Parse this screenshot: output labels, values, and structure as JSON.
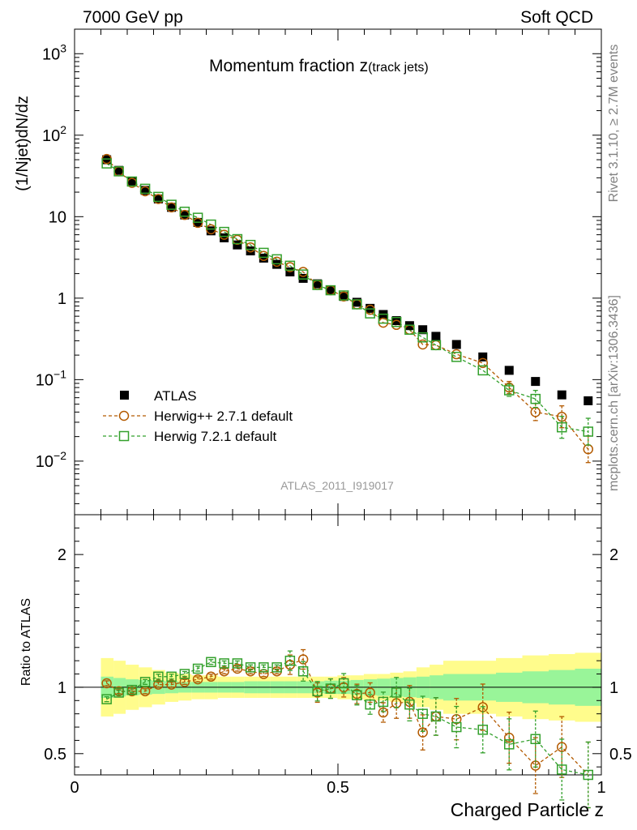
{
  "header": {
    "left": "7000 GeV pp",
    "right": "Soft QCD"
  },
  "side": {
    "rivet": "Rivet 3.1.10, ≥ 2.7M events",
    "mcplots": "mcplots.cern.ch [arXiv:1306.3436]"
  },
  "analysis_id": "ATLAS_2011_I919017",
  "title": {
    "main": "Momentum fraction z",
    "sub": "(track jets)"
  },
  "legend": {
    "atlas": "ATLAS",
    "h1": "Herwig++ 2.7.1 default",
    "h2": "Herwig 7.2.1 default"
  },
  "colors": {
    "atlas": "#000000",
    "herwigpp": "#b35a00",
    "herwig7": "#33a02c",
    "band_inner": "#99f599",
    "band_outer": "#fffc8c"
  },
  "chart_data": {
    "type": "scatter",
    "x": [
      0.061,
      0.084,
      0.109,
      0.134,
      0.159,
      0.184,
      0.209,
      0.234,
      0.259,
      0.284,
      0.309,
      0.334,
      0.359,
      0.384,
      0.409,
      0.434,
      0.461,
      0.486,
      0.511,
      0.536,
      0.561,
      0.586,
      0.611,
      0.636,
      0.661,
      0.686,
      0.725,
      0.775,
      0.825,
      0.875,
      0.925,
      0.975
    ],
    "series": [
      {
        "name": "ATLAS",
        "values": [
          50,
          37,
          27,
          21,
          16.5,
          13,
          10.5,
          8.5,
          6.7,
          5.5,
          4.5,
          3.8,
          3.1,
          2.6,
          2.1,
          1.75,
          1.5,
          1.25,
          1.05,
          0.89,
          0.75,
          0.63,
          0.53,
          0.46,
          0.41,
          0.34,
          0.27,
          0.19,
          0.13,
          0.095,
          0.065,
          0.055
        ]
      },
      {
        "name": "Herwig++ 2.7.1 default",
        "values": [
          51,
          36,
          26,
          20.5,
          16.5,
          13,
          10.5,
          8.4,
          7,
          6,
          5.2,
          4.2,
          3.3,
          2.8,
          2.4,
          2.1,
          1.45,
          1.25,
          1.05,
          0.84,
          0.72,
          0.5,
          0.47,
          0.41,
          0.27,
          0.265,
          0.205,
          0.16,
          0.08,
          0.04,
          0.035,
          0.014
        ]
      },
      {
        "name": "Herwig 7.2.1 default",
        "values": [
          45,
          36,
          27,
          22,
          17.5,
          14,
          11.5,
          9.7,
          8,
          6.5,
          5.3,
          4.5,
          3.6,
          3,
          2.5,
          1.95,
          1.45,
          1.25,
          1.08,
          0.84,
          0.65,
          0.56,
          0.51,
          0.41,
          0.33,
          0.265,
          0.19,
          0.13,
          0.074,
          0.058,
          0.026,
          0.023
        ]
      }
    ],
    "ratio": {
      "ylabel": "Ratio to ATLAS",
      "herwigpp": [
        1.03,
        0.97,
        0.97,
        0.97,
        1.02,
        1.02,
        1.04,
        1.06,
        1.08,
        1.12,
        1.14,
        1.12,
        1.1,
        1.12,
        1.17,
        1.21,
        0.96,
        0.99,
        1.0,
        0.95,
        0.96,
        0.81,
        0.88,
        0.89,
        0.66,
        0.78,
        0.76,
        0.85,
        0.62,
        0.41,
        0.55,
        0.32
      ],
      "herwig7": [
        0.91,
        0.96,
        0.98,
        1.04,
        1.08,
        1.08,
        1.1,
        1.14,
        1.19,
        1.18,
        1.18,
        1.15,
        1.15,
        1.15,
        1.2,
        1.12,
        0.97,
        0.99,
        1.03,
        0.94,
        0.87,
        0.89,
        0.96,
        0.87,
        0.8,
        0.78,
        0.7,
        0.68,
        0.57,
        0.61,
        0.38,
        0.34
      ],
      "band_x": [
        0.05,
        0.074,
        0.097,
        0.122,
        0.147,
        0.172,
        0.197,
        0.222,
        0.247,
        0.272,
        0.297,
        0.322,
        0.347,
        0.372,
        0.397,
        0.422,
        0.447,
        0.474,
        0.499,
        0.524,
        0.549,
        0.574,
        0.599,
        0.624,
        0.649,
        0.674,
        0.7,
        0.75,
        0.8,
        0.85,
        0.9,
        0.95,
        1.0
      ],
      "band_inner": [
        0.08,
        0.07,
        0.06,
        0.055,
        0.05,
        0.045,
        0.04,
        0.04,
        0.04,
        0.04,
        0.04,
        0.045,
        0.045,
        0.045,
        0.045,
        0.045,
        0.045,
        0.05,
        0.05,
        0.055,
        0.06,
        0.065,
        0.07,
        0.075,
        0.08,
        0.09,
        0.1,
        0.1,
        0.11,
        0.12,
        0.13,
        0.14
      ],
      "band_outer": [
        0.22,
        0.2,
        0.17,
        0.15,
        0.13,
        0.11,
        0.1,
        0.09,
        0.09,
        0.08,
        0.08,
        0.08,
        0.08,
        0.08,
        0.08,
        0.08,
        0.08,
        0.08,
        0.09,
        0.09,
        0.1,
        0.1,
        0.11,
        0.12,
        0.15,
        0.17,
        0.2,
        0.2,
        0.22,
        0.24,
        0.25,
        0.26
      ],
      "ylim": [
        0.34,
        2.3
      ],
      "yticks": [
        "0.5",
        "1",
        "2"
      ]
    },
    "xlabel": "Charged Particle z",
    "ylabel": "(1/Njet)dN/dz",
    "xlim": [
      0,
      1.0
    ],
    "ylim": [
      0.0022,
      2000
    ],
    "log_y": true,
    "xticks": [
      "0",
      "0.5",
      "1"
    ],
    "yticks": [
      "10−2",
      "10−1",
      "1",
      "10",
      "102",
      "103"
    ]
  }
}
